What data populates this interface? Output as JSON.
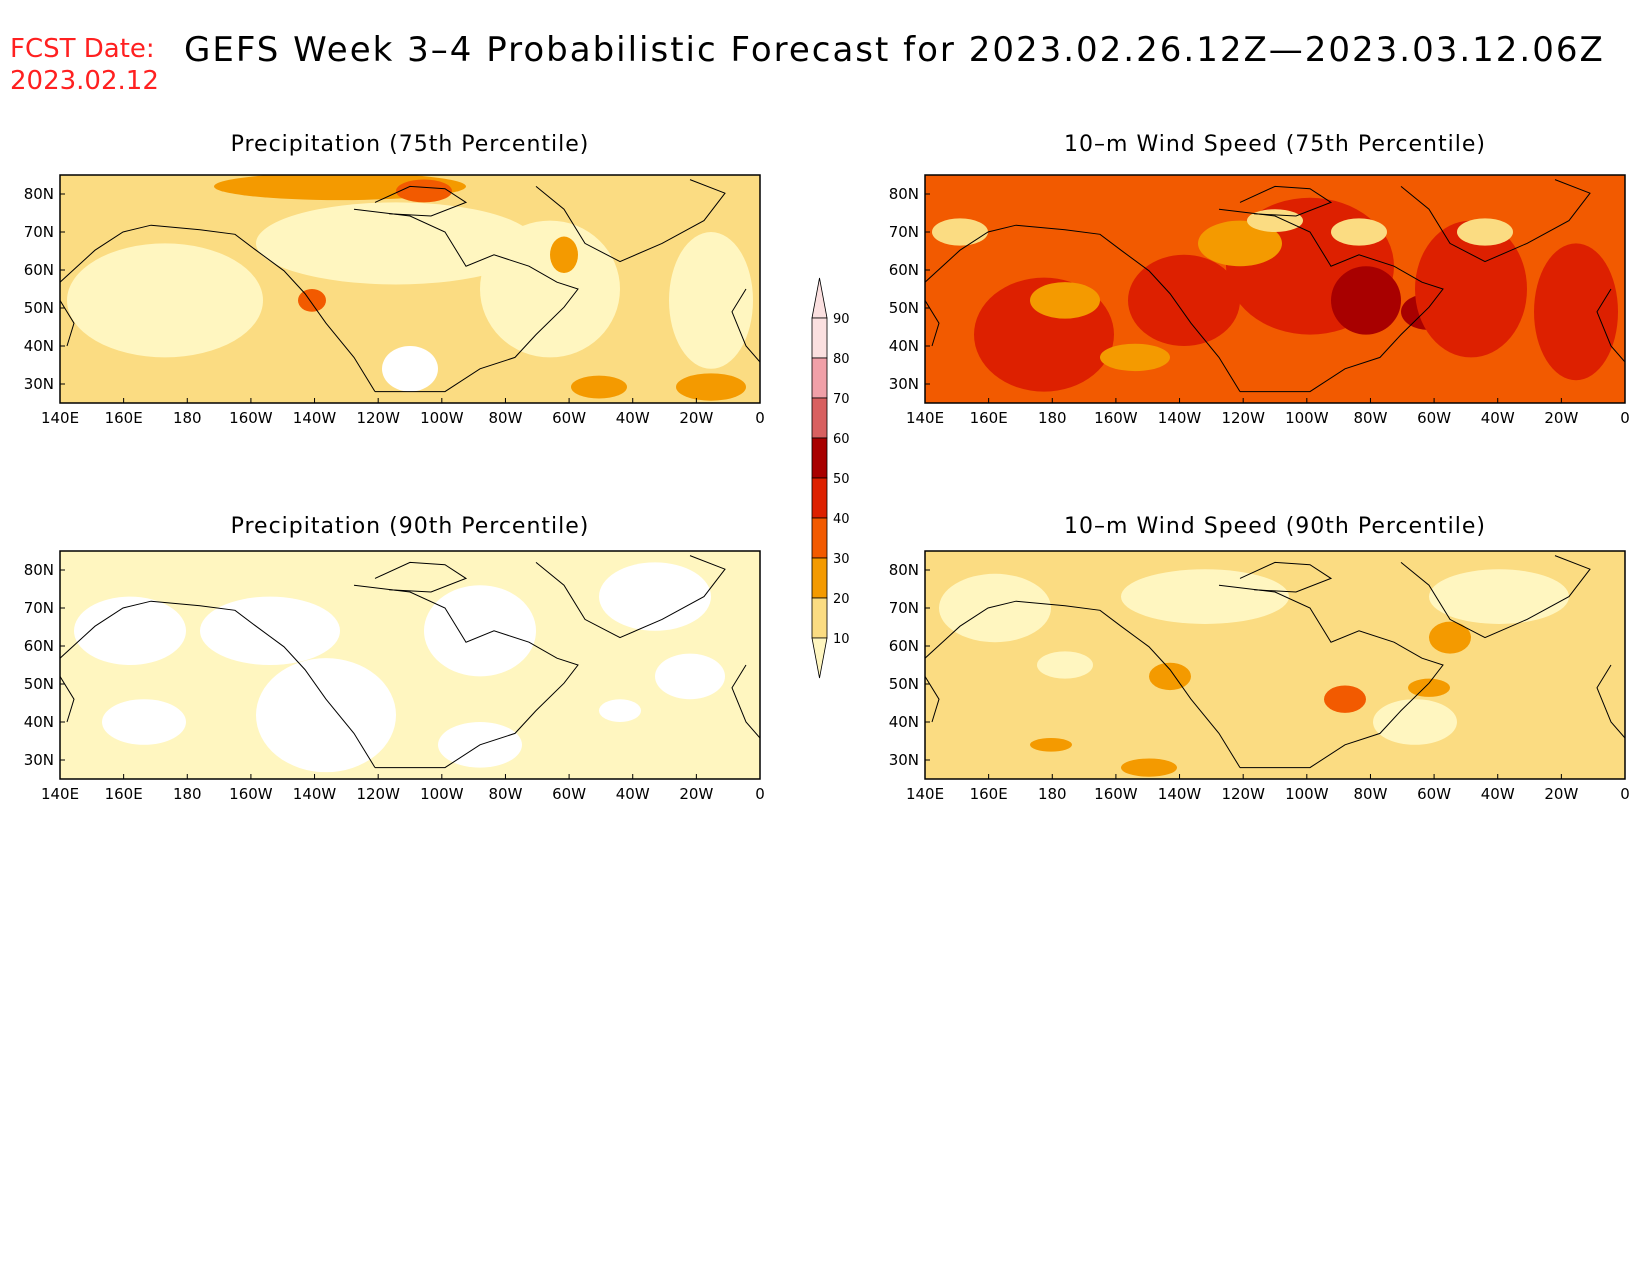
{
  "header": {
    "fcst_label": "FCST Date:",
    "fcst_date": "2023.02.12",
    "title": "GEFS Week 3–4 Probabilistic Forecast for 2023.02.26.12Z—2023.03.12.06Z"
  },
  "panels": [
    {
      "title": "Precipitation (75th Percentile)",
      "dominant_level": "10-20",
      "hotspots": [
        "30-40 near 75W 78N",
        "30-40 north Atlantic 30N 20W"
      ]
    },
    {
      "title": "10–m Wind Speed (75th Percentile)",
      "dominant_level": "30-40",
      "hotspots": [
        "50-60 Pacific 50N 140W",
        "60-70 Great Lakes",
        "60-70 Gulf of St. Lawrence"
      ]
    },
    {
      "title": "Precipitation (90th Percentile)",
      "dominant_level": "0-10 / 10-20",
      "hotspots": []
    },
    {
      "title": "10–m Wind Speed (90th Percentile)",
      "dominant_level": "10-20",
      "hotspots": [
        "40-50 Great Lakes",
        "30-40 Labrador Sea"
      ]
    }
  ],
  "axes": {
    "x_labels": [
      "140E",
      "160E",
      "180",
      "160W",
      "140W",
      "120W",
      "100W",
      "80W",
      "60W",
      "40W",
      "20W",
      "0"
    ],
    "y_labels": [
      "80N",
      "70N",
      "60N",
      "50N",
      "40N",
      "30N"
    ]
  },
  "colorbar": {
    "labels": [
      "90",
      "80",
      "70",
      "60",
      "50",
      "40",
      "30",
      "20",
      "10"
    ],
    "colors": [
      "#fbe0e0",
      "#f0a0a8",
      "#d86060",
      "#a80000",
      "#dd2000",
      "#f25a00",
      "#f49a00",
      "#fbdc82",
      "#fff6c0"
    ]
  }
}
